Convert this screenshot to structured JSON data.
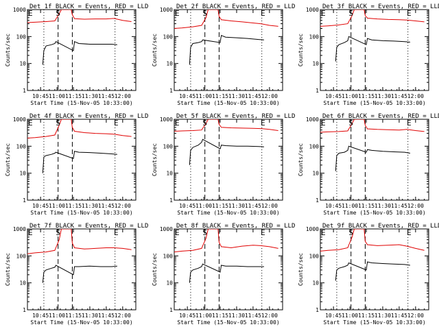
{
  "chart_data": [
    {
      "type": "line",
      "title": "Det 1f BLACK = Events, RED = LLD",
      "ylabel": "Counts/sec",
      "xlabel": "Start Time (15-Nov-05 10:33:00)",
      "x_ticks": [
        "10:45",
        "11:00",
        "11:15",
        "11:30",
        "11:45",
        "12:00"
      ],
      "y_ticks": [
        "1",
        "10",
        "100",
        "1000"
      ],
      "ylim": [
        1,
        1000
      ],
      "yscale": "log",
      "markers": [
        {
          "label": "E",
          "time": "10:33"
        },
        {
          "label": "S",
          "time": "11:01"
        },
        {
          "label": "E",
          "time": "11:54"
        }
      ],
      "series": [
        {
          "color": "#e00000",
          "x": [
            "10:33",
            "10:40",
            "10:50",
            "10:58",
            "11:02",
            "11:04",
            "11:13",
            "11:14",
            "11:16",
            "11:25",
            "11:35",
            "11:45",
            "11:52",
            "12:00",
            "12:08"
          ],
          "y": [
            330,
            340,
            360,
            380,
            700,
            1000,
            1000,
            650,
            460,
            440,
            450,
            450,
            470,
            400,
            360
          ]
        },
        {
          "color": "#000000",
          "x": [
            "10:47",
            "10:48",
            "10:50",
            "10:55",
            "10:58",
            "10:59",
            "11:15",
            "11:16",
            "11:20",
            "11:30",
            "11:40",
            "11:50",
            "11:55"
          ],
          "y": [
            9,
            30,
            45,
            50,
            55,
            65,
            30,
            65,
            55,
            52,
            52,
            52,
            50
          ]
        }
      ]
    },
    {
      "type": "line",
      "title": "Det 2f BLACK = Events, RED = LLD",
      "ylabel": "Counts/sec",
      "xlabel": "Start Time (15-Nov-05 10:33:00)",
      "x_ticks": [
        "10:45",
        "11:00",
        "11:15",
        "11:30",
        "11:45",
        "12:00"
      ],
      "y_ticks": [
        "1",
        "10",
        "100",
        "1000"
      ],
      "ylim": [
        1,
        1000
      ],
      "yscale": "log",
      "markers": [
        {
          "label": "E",
          "time": "10:33"
        },
        {
          "label": "S",
          "time": "11:01"
        },
        {
          "label": "E",
          "time": "11:54"
        }
      ],
      "series": [
        {
          "color": "#e00000",
          "x": [
            "10:33",
            "10:40",
            "10:50",
            "10:58",
            "11:02",
            "11:04",
            "11:13",
            "11:14",
            "11:16",
            "11:25",
            "11:35",
            "11:45",
            "11:52",
            "12:00",
            "12:08"
          ],
          "y": [
            200,
            210,
            230,
            260,
            500,
            1000,
            1000,
            560,
            420,
            380,
            350,
            320,
            300,
            260,
            240
          ]
        },
        {
          "color": "#000000",
          "x": [
            "10:47",
            "10:48",
            "10:50",
            "10:55",
            "10:58",
            "10:59",
            "11:15",
            "11:16",
            "11:20",
            "11:30",
            "11:40",
            "11:50",
            "11:55"
          ],
          "y": [
            9,
            40,
            55,
            60,
            65,
            75,
            60,
            110,
            95,
            90,
            85,
            78,
            75
          ]
        }
      ]
    },
    {
      "type": "line",
      "title": "Det 3f BLACK = Events, RED = LLD",
      "ylabel": "Counts/sec",
      "xlabel": "Start Time (15-Nov-05 10:33:00)",
      "x_ticks": [
        "10:45",
        "11:00",
        "11:15",
        "11:30",
        "11:45",
        "12:00"
      ],
      "y_ticks": [
        "1",
        "10",
        "100",
        "1000"
      ],
      "ylim": [
        1,
        1000
      ],
      "yscale": "log",
      "markers": [
        {
          "label": "E",
          "time": "10:33"
        },
        {
          "label": "S",
          "time": "11:01"
        },
        {
          "label": "E",
          "time": "11:54"
        }
      ],
      "series": [
        {
          "color": "#e00000",
          "x": [
            "10:33",
            "10:40",
            "10:50",
            "10:58",
            "11:02",
            "11:04",
            "11:13",
            "11:14",
            "11:16",
            "11:25",
            "11:35",
            "11:45",
            "11:52",
            "12:00",
            "12:08"
          ],
          "y": [
            240,
            250,
            270,
            300,
            600,
            1000,
            1000,
            600,
            480,
            450,
            430,
            420,
            410,
            380,
            350
          ]
        },
        {
          "color": "#000000",
          "x": [
            "10:47",
            "10:48",
            "10:50",
            "10:55",
            "10:58",
            "10:59",
            "11:15",
            "11:16",
            "11:20",
            "11:30",
            "11:40",
            "11:50",
            "11:55"
          ],
          "y": [
            12,
            40,
            50,
            60,
            70,
            100,
            50,
            85,
            75,
            70,
            68,
            65,
            62
          ]
        }
      ]
    },
    {
      "type": "line",
      "title": "Det 4f BLACK = Events, RED = LLD",
      "ylabel": "Counts/sec",
      "xlabel": "Start Time (15-Nov-05 10:33:00)",
      "x_ticks": [
        "10:45",
        "11:00",
        "11:15",
        "11:30",
        "11:45",
        "12:00"
      ],
      "y_ticks": [
        "1",
        "10",
        "100",
        "1000"
      ],
      "ylim": [
        1,
        1000
      ],
      "yscale": "log",
      "markers": [
        {
          "label": "E",
          "time": "10:33"
        },
        {
          "label": "S",
          "time": "11:01"
        },
        {
          "label": "E",
          "time": "11:54"
        }
      ],
      "series": [
        {
          "color": "#e00000",
          "x": [
            "10:33",
            "10:40",
            "10:50",
            "10:58",
            "11:02",
            "11:04",
            "11:13",
            "11:14",
            "11:16",
            "11:25",
            "11:35",
            "11:45",
            "11:52",
            "12:00",
            "12:08"
          ],
          "y": [
            200,
            210,
            230,
            260,
            600,
            1000,
            1000,
            500,
            360,
            320,
            300,
            290,
            280,
            250,
            230
          ]
        },
        {
          "color": "#000000",
          "x": [
            "10:47",
            "10:48",
            "10:50",
            "10:55",
            "10:58",
            "10:59",
            "11:15",
            "11:16",
            "11:20",
            "11:30",
            "11:40",
            "11:50",
            "11:55"
          ],
          "y": [
            10,
            40,
            45,
            50,
            55,
            60,
            35,
            65,
            60,
            58,
            55,
            52,
            50
          ]
        }
      ]
    },
    {
      "type": "line",
      "title": "Det 5f BLACK = Events, RED = LLD",
      "ylabel": "Counts/sec",
      "xlabel": "Start Time (15-Nov-05 10:33:00)",
      "x_ticks": [
        "10:45",
        "11:00",
        "11:15",
        "11:30",
        "11:45",
        "12:00"
      ],
      "y_ticks": [
        "1",
        "10",
        "100",
        "1000"
      ],
      "ylim": [
        1,
        1000
      ],
      "yscale": "log",
      "markers": [
        {
          "label": "E",
          "time": "10:33"
        },
        {
          "label": "S",
          "time": "11:01"
        },
        {
          "label": "E",
          "time": "11:54"
        }
      ],
      "series": [
        {
          "color": "#e00000",
          "x": [
            "10:33",
            "10:40",
            "10:50",
            "10:58",
            "11:02",
            "11:04",
            "11:13",
            "11:14",
            "11:16",
            "11:25",
            "11:35",
            "11:45",
            "11:52",
            "12:00",
            "12:08"
          ],
          "y": [
            360,
            370,
            380,
            400,
            700,
            1000,
            1000,
            650,
            500,
            480,
            470,
            460,
            450,
            420,
            380
          ]
        },
        {
          "color": "#000000",
          "x": [
            "10:47",
            "10:48",
            "10:50",
            "10:55",
            "10:58",
            "10:59",
            "11:15",
            "11:16",
            "11:20",
            "11:30",
            "11:40",
            "11:50",
            "11:55"
          ],
          "y": [
            20,
            70,
            90,
            110,
            140,
            180,
            80,
            110,
            105,
            100,
            100,
            98,
            95
          ]
        }
      ]
    },
    {
      "type": "line",
      "title": "Det 6f BLACK = Events, RED = LLD",
      "ylabel": "Counts/sec",
      "xlabel": "Start Time (15-Nov-05 10:33:00)",
      "x_ticks": [
        "10:45",
        "11:00",
        "11:15",
        "11:30",
        "11:45",
        "12:00"
      ],
      "y_ticks": [
        "1",
        "10",
        "100",
        "1000"
      ],
      "ylim": [
        1,
        1000
      ],
      "yscale": "log",
      "markers": [
        {
          "label": "E",
          "time": "10:33"
        },
        {
          "label": "S",
          "time": "11:01"
        },
        {
          "label": "E",
          "time": "11:54"
        }
      ],
      "series": [
        {
          "color": "#e00000",
          "x": [
            "10:33",
            "10:40",
            "10:50",
            "10:58",
            "11:02",
            "11:04",
            "11:13",
            "11:14",
            "11:16",
            "11:25",
            "11:35",
            "11:45",
            "11:52",
            "12:00",
            "12:08"
          ],
          "y": [
            330,
            340,
            350,
            370,
            700,
            1000,
            1000,
            600,
            440,
            420,
            410,
            400,
            420,
            380,
            350
          ]
        },
        {
          "color": "#000000",
          "x": [
            "10:47",
            "10:48",
            "10:50",
            "10:55",
            "10:58",
            "10:59",
            "11:15",
            "11:16",
            "11:20",
            "11:30",
            "11:40",
            "11:50",
            "11:55"
          ],
          "y": [
            12,
            45,
            55,
            60,
            70,
            100,
            60,
            75,
            70,
            65,
            62,
            60,
            55
          ]
        }
      ]
    },
    {
      "type": "line",
      "title": "Det 7f BLACK = Events, RED = LLD",
      "ylabel": "Counts/sec",
      "xlabel": "Start Time (15-Nov-05 10:33:00)",
      "x_ticks": [
        "10:45",
        "11:00",
        "11:15",
        "11:30",
        "11:45",
        "12:00"
      ],
      "y_ticks": [
        "1",
        "10",
        "100",
        "1000"
      ],
      "ylim": [
        1,
        1000
      ],
      "yscale": "log",
      "markers": [
        {
          "label": "E",
          "time": "10:33"
        },
        {
          "label": "S",
          "time": "11:01"
        },
        {
          "label": "E",
          "time": "11:54"
        }
      ],
      "series": [
        {
          "color": "#e00000",
          "x": [
            "10:33",
            "10:40",
            "10:50",
            "10:58",
            "11:02",
            "11:04",
            "11:13",
            "11:14",
            "11:16",
            "11:25",
            "11:35",
            "11:45",
            "11:52",
            "12:00",
            "12:08"
          ],
          "y": [
            120,
            130,
            140,
            160,
            400,
            1000,
            1000,
            300,
            200,
            180,
            190,
            200,
            200,
            190,
            170
          ]
        },
        {
          "color": "#000000",
          "x": [
            "10:47",
            "10:48",
            "10:50",
            "10:55",
            "10:58",
            "10:59",
            "11:15",
            "11:16",
            "11:20",
            "11:30",
            "11:40",
            "11:50",
            "11:55"
          ],
          "y": [
            10,
            25,
            30,
            35,
            38,
            45,
            20,
            40,
            40,
            42,
            40,
            40,
            42
          ]
        }
      ]
    },
    {
      "type": "line",
      "title": "Det 8f BLACK = Events, RED = LLD",
      "ylabel": "Counts/sec",
      "xlabel": "Start Time (15-Nov-05 10:33:00)",
      "x_ticks": [
        "10:45",
        "11:00",
        "11:15",
        "11:30",
        "11:45",
        "12:00"
      ],
      "y_ticks": [
        "1",
        "10",
        "100",
        "1000"
      ],
      "ylim": [
        1,
        1000
      ],
      "yscale": "log",
      "markers": [
        {
          "label": "E",
          "time": "10:33"
        },
        {
          "label": "S",
          "time": "11:01"
        },
        {
          "label": "E",
          "time": "11:54"
        }
      ],
      "series": [
        {
          "color": "#e00000",
          "x": [
            "10:33",
            "10:40",
            "10:50",
            "10:58",
            "11:02",
            "11:04",
            "11:13",
            "11:14",
            "11:16",
            "11:25",
            "11:35",
            "11:45",
            "11:52",
            "12:00",
            "12:08"
          ],
          "y": [
            140,
            150,
            160,
            190,
            450,
            1000,
            1000,
            320,
            220,
            200,
            230,
            250,
            240,
            220,
            190
          ]
        },
        {
          "color": "#000000",
          "x": [
            "10:47",
            "10:48",
            "10:50",
            "10:55",
            "10:58",
            "10:59",
            "11:15",
            "11:16",
            "11:20",
            "11:30",
            "11:40",
            "11:50",
            "11:55"
          ],
          "y": [
            10,
            25,
            30,
            35,
            40,
            50,
            25,
            45,
            42,
            42,
            40,
            40,
            40
          ]
        }
      ]
    },
    {
      "type": "line",
      "title": "Det 9f BLACK = Events, RED = LLD",
      "ylabel": "Counts/sec",
      "xlabel": "Start Time (15-Nov-05 10:33:00)",
      "x_ticks": [
        "10:45",
        "11:00",
        "11:15",
        "11:30",
        "11:45",
        "12:00"
      ],
      "y_ticks": [
        "1",
        "10",
        "100",
        "1000"
      ],
      "ylim": [
        1,
        1000
      ],
      "yscale": "log",
      "markers": [
        {
          "label": "E",
          "time": "10:33"
        },
        {
          "label": "S",
          "time": "11:01"
        },
        {
          "label": "E",
          "time": "11:54"
        }
      ],
      "series": [
        {
          "color": "#e00000",
          "x": [
            "10:33",
            "10:40",
            "10:50",
            "10:58",
            "11:02",
            "11:04",
            "11:13",
            "11:14",
            "11:16",
            "11:25",
            "11:35",
            "11:45",
            "11:52",
            "12:00",
            "12:08"
          ],
          "y": [
            150,
            160,
            170,
            200,
            500,
            1000,
            1000,
            350,
            260,
            240,
            250,
            260,
            230,
            190,
            160
          ]
        },
        {
          "color": "#000000",
          "x": [
            "10:47",
            "10:48",
            "10:50",
            "10:55",
            "10:58",
            "10:59",
            "11:15",
            "11:16",
            "11:20",
            "11:30",
            "11:40",
            "11:50",
            "11:55"
          ],
          "y": [
            12,
            30,
            35,
            40,
            45,
            55,
            30,
            60,
            55,
            52,
            50,
            48,
            45
          ]
        }
      ]
    }
  ]
}
